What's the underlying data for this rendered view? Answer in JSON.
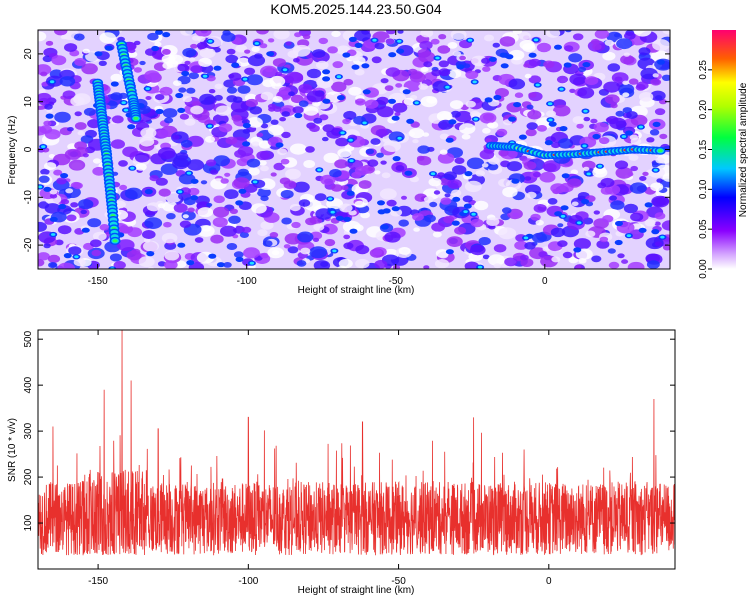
{
  "title": "KOM5.2025.144.23.50.G04",
  "chart_data": [
    {
      "type": "heatmap",
      "xlabel": "Height of straight line (km)",
      "ylabel": "Frequency (Hz)",
      "xlim": [
        -170,
        42
      ],
      "ylim": [
        -25,
        25
      ],
      "xticks": [
        -150,
        -100,
        -50,
        0
      ],
      "yticks": [
        -20,
        -10,
        0,
        10,
        20
      ],
      "colorbar": {
        "label": "Normalized spectral amplitude",
        "range": [
          0,
          0.3
        ],
        "ticks": [
          "0.00",
          "0.05",
          "0.10",
          "0.15",
          "0.20",
          "0.25"
        ],
        "colormap": [
          "#ffffff",
          "#8a00ff",
          "#0000ff",
          "#00ffff",
          "#00ff00",
          "#ffff00",
          "#ff8000",
          "#ff0000",
          "#ff0080"
        ]
      },
      "ridges": [
        {
          "x": [
            -150,
            -149,
            -148,
            -147,
            -146,
            -145,
            -144
          ],
          "y": [
            14,
            9,
            4,
            -1,
            -7,
            -13,
            -20
          ]
        },
        {
          "x": [
            -142,
            -140,
            -138,
            -137
          ],
          "y": [
            22,
            16,
            10,
            6
          ]
        },
        {
          "x": [
            -18,
            -10,
            0,
            10,
            20,
            30,
            40
          ],
          "y": [
            0.8,
            0.5,
            -1.2,
            -1.0,
            -0.5,
            0.0,
            -0.3
          ]
        }
      ]
    },
    {
      "type": "line",
      "xlabel": "Height of straight line (km)",
      "ylabel": "SNR (10 * v/v)",
      "xlim": [
        -170,
        42
      ],
      "ylim": [
        0,
        520
      ],
      "xticks": [
        -150,
        -100,
        -50,
        0
      ],
      "yticks": [
        100,
        200,
        300,
        400,
        500
      ],
      "baseline": 110,
      "peaks": [
        {
          "x": -142,
          "y": 520
        },
        {
          "x": -148,
          "y": 390
        },
        {
          "x": -139,
          "y": 410
        },
        {
          "x": -100,
          "y": 330
        },
        {
          "x": -62,
          "y": 320
        },
        {
          "x": -25,
          "y": 330
        },
        {
          "x": 35,
          "y": 370
        },
        {
          "x": -165,
          "y": 310
        },
        {
          "x": -130,
          "y": 305
        }
      ],
      "color": "#e8302d"
    }
  ]
}
